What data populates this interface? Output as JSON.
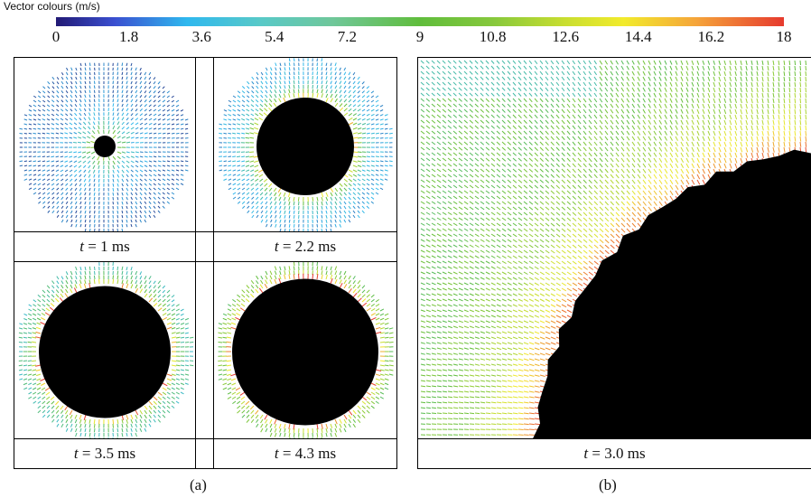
{
  "colorbar": {
    "title": "Vector colours (m/s)",
    "ticks": [
      "0",
      "1.8",
      "3.6",
      "5.4",
      "7.2",
      "9",
      "10.8",
      "12.6",
      "14.4",
      "16.2",
      "18"
    ],
    "colors": [
      "#221a75",
      "#2fb8ee",
      "#60bd3c",
      "#f2eb2c",
      "#e63a2e"
    ]
  },
  "panels_a": [
    {
      "t_var": "t",
      "t_text": " = 1 ms"
    },
    {
      "t_var": "t",
      "t_text": " = 2.2 ms"
    },
    {
      "t_var": "t",
      "t_text": " = 3.5 ms"
    },
    {
      "t_var": "t",
      "t_text": " = 4.3 ms"
    }
  ],
  "panel_b": {
    "t_var": "t",
    "t_text": " = 3.0 ms"
  },
  "captions": {
    "a": "(a)",
    "b": "(b)"
  }
}
